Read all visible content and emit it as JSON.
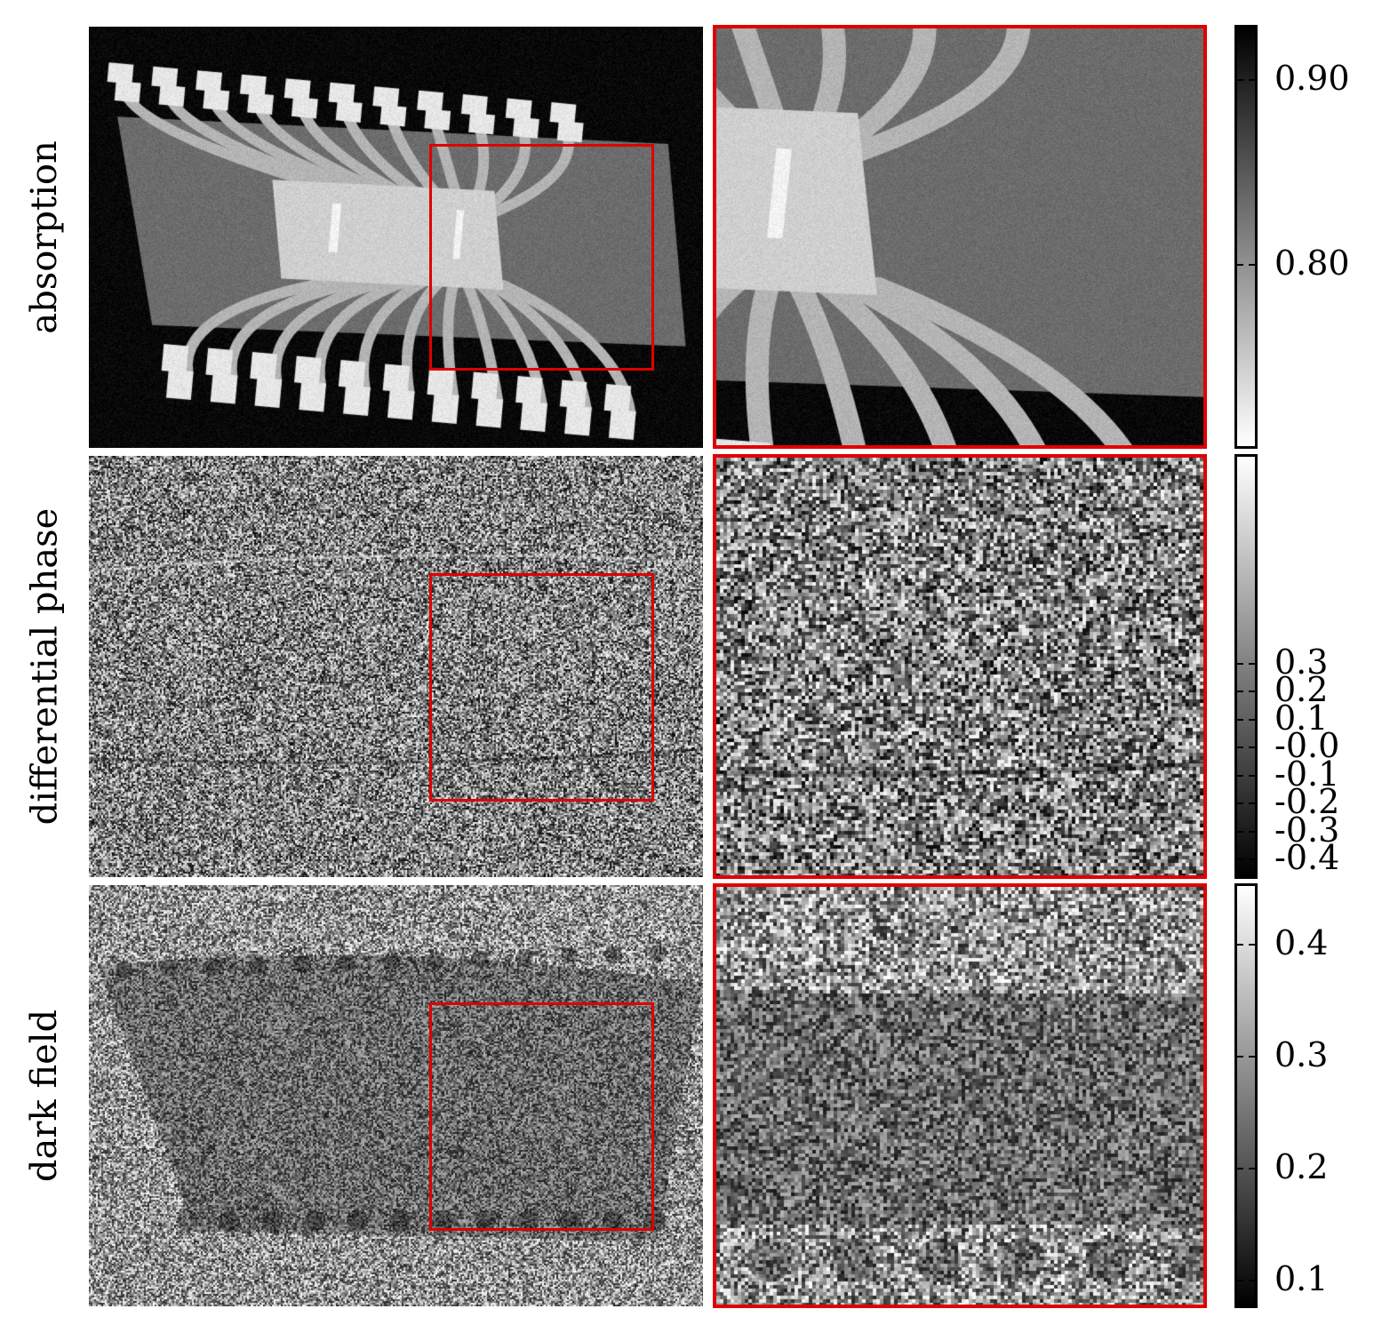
{
  "rows": [
    {
      "label": "absorption",
      "colorbar": {
        "direction": "light-to-dark upward",
        "ticks": [
          {
            "label": "0.90",
            "value": 0.9
          },
          {
            "label": "0.80",
            "value": 0.8
          }
        ],
        "range": [
          0.7,
          0.93
        ]
      }
    },
    {
      "label": "differential phase",
      "colorbar": {
        "direction": "dark-to-light upward",
        "ticks": [
          {
            "label": "0.3",
            "value": 0.3
          },
          {
            "label": "0.2",
            "value": 0.2
          },
          {
            "label": "0.1",
            "value": 0.1
          },
          {
            "label": "-0.0",
            "value": 0.0
          },
          {
            "label": "-0.1",
            "value": -0.1
          },
          {
            "label": "-0.2",
            "value": -0.2
          },
          {
            "label": "-0.3",
            "value": -0.3
          },
          {
            "label": "-0.4",
            "value": -0.4
          }
        ],
        "range": [
          -0.47,
          1.05
        ]
      }
    },
    {
      "label": "dark field",
      "colorbar": {
        "direction": "dark-to-light upward",
        "ticks": [
          {
            "label": "0.4",
            "value": 0.4
          },
          {
            "label": "0.3",
            "value": 0.3
          },
          {
            "label": "0.2",
            "value": 0.2
          },
          {
            "label": "0.1",
            "value": 0.1
          }
        ],
        "range": [
          0.075,
          0.455
        ]
      }
    }
  ],
  "colors": {
    "roi": "#e00000",
    "colorbar_frame": "#000000"
  }
}
